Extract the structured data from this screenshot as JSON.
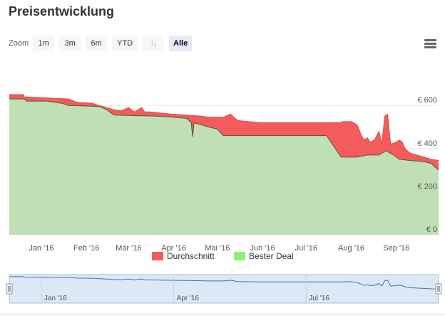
{
  "title": "Preisentwicklung",
  "zoom": {
    "label": "Zoom",
    "buttons": [
      {
        "label": "1m",
        "state": "normal"
      },
      {
        "label": "3m",
        "state": "normal"
      },
      {
        "label": "6m",
        "state": "normal"
      },
      {
        "label": "YTD",
        "state": "normal"
      },
      {
        "label": "1j",
        "state": "disabled"
      },
      {
        "label": "Alle",
        "state": "active"
      }
    ]
  },
  "menu_icon": "hamburger-menu-icon",
  "chart_data": {
    "type": "area",
    "x_ticks": [
      "Jan '16",
      "Feb '16",
      "Mär '16",
      "Apr '16",
      "Mai '16",
      "Jun '16",
      "Jul '16",
      "Aug '16",
      "Sep '16"
    ],
    "y_ticks": [
      "€ 0",
      "€ 200",
      "€ 400",
      "€ 600"
    ],
    "ylim": [
      0,
      660
    ],
    "xlim": [
      "2015-12-10",
      "2016-09-30"
    ],
    "grid": true,
    "legend_position": "bottom",
    "series": [
      {
        "name": "Durchschnitt",
        "color": "#f45b5b",
        "points": [
          [
            "2015-12-10",
            650
          ],
          [
            "2015-12-20",
            650
          ],
          [
            "2015-12-20",
            640
          ],
          [
            "2016-01-05",
            635
          ],
          [
            "2016-01-20",
            630
          ],
          [
            "2016-01-25",
            615
          ],
          [
            "2016-02-05",
            610
          ],
          [
            "2016-02-10",
            600
          ],
          [
            "2016-02-15",
            590
          ],
          [
            "2016-02-20",
            580
          ],
          [
            "2016-02-25",
            575
          ],
          [
            "2016-03-01",
            590
          ],
          [
            "2016-03-05",
            570
          ],
          [
            "2016-03-10",
            590
          ],
          [
            "2016-03-12",
            570
          ],
          [
            "2016-03-15",
            570
          ],
          [
            "2016-03-30",
            560
          ],
          [
            "2016-04-10",
            555
          ],
          [
            "2016-04-20",
            550
          ],
          [
            "2016-04-25",
            545
          ],
          [
            "2016-05-05",
            545
          ],
          [
            "2016-05-10",
            560
          ],
          [
            "2016-05-15",
            530
          ],
          [
            "2016-05-30",
            520
          ],
          [
            "2016-06-20",
            520
          ],
          [
            "2016-07-10",
            520
          ],
          [
            "2016-07-25",
            520
          ],
          [
            "2016-07-26",
            525
          ],
          [
            "2016-08-01",
            525
          ],
          [
            "2016-08-05",
            510
          ],
          [
            "2016-08-08",
            460
          ],
          [
            "2016-08-10",
            440
          ],
          [
            "2016-08-12",
            450
          ],
          [
            "2016-08-14",
            430
          ],
          [
            "2016-08-17",
            440
          ],
          [
            "2016-08-20",
            480
          ],
          [
            "2016-08-22",
            420
          ],
          [
            "2016-08-24",
            550
          ],
          [
            "2016-08-26",
            560
          ],
          [
            "2016-08-28",
            420
          ],
          [
            "2016-09-01",
            430
          ],
          [
            "2016-09-03",
            440
          ],
          [
            "2016-09-05",
            430
          ],
          [
            "2016-09-07",
            400
          ],
          [
            "2016-09-10",
            380
          ],
          [
            "2016-09-15",
            370
          ],
          [
            "2016-09-20",
            360
          ],
          [
            "2016-09-25",
            350
          ],
          [
            "2016-09-30",
            345
          ]
        ]
      },
      {
        "name": "Bester Deal",
        "color": "#90ed7d",
        "points": [
          [
            "2015-12-10",
            630
          ],
          [
            "2015-12-20",
            630
          ],
          [
            "2015-12-22",
            620
          ],
          [
            "2016-01-05",
            620
          ],
          [
            "2016-01-15",
            610
          ],
          [
            "2016-01-20",
            600
          ],
          [
            "2016-02-10",
            595
          ],
          [
            "2016-02-15",
            580
          ],
          [
            "2016-02-20",
            555
          ],
          [
            "2016-03-20",
            550
          ],
          [
            "2016-04-01",
            545
          ],
          [
            "2016-04-10",
            540
          ],
          [
            "2016-04-13",
            520
          ],
          [
            "2016-04-14",
            455
          ],
          [
            "2016-04-15",
            520
          ],
          [
            "2016-04-25",
            500
          ],
          [
            "2016-05-01",
            490
          ],
          [
            "2016-05-05",
            460
          ],
          [
            "2016-05-20",
            460
          ],
          [
            "2016-06-10",
            460
          ],
          [
            "2016-06-25",
            460
          ],
          [
            "2016-07-15",
            460
          ],
          [
            "2016-07-25",
            360
          ],
          [
            "2016-08-05",
            360
          ],
          [
            "2016-08-12",
            370
          ],
          [
            "2016-08-20",
            370
          ],
          [
            "2016-08-25",
            390
          ],
          [
            "2016-08-30",
            370
          ],
          [
            "2016-09-03",
            350
          ],
          [
            "2016-09-10",
            345
          ],
          [
            "2016-09-20",
            340
          ],
          [
            "2016-09-25",
            330
          ],
          [
            "2016-09-30",
            300
          ]
        ]
      }
    ]
  }
}
